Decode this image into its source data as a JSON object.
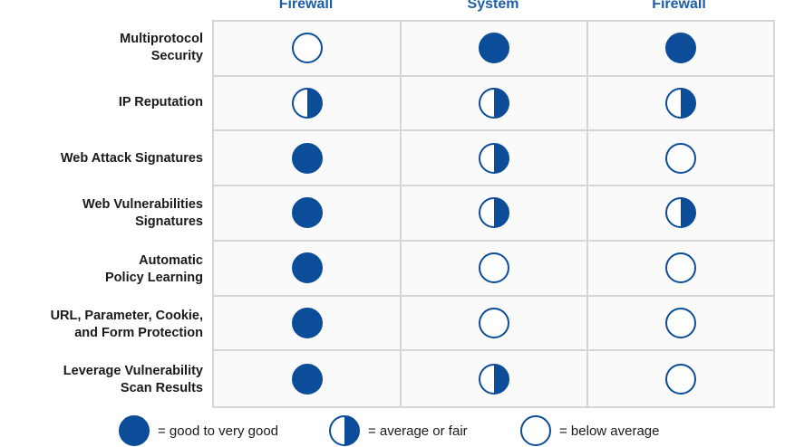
{
  "colors": {
    "accent": "#0b4d99",
    "header": "#1c5ea8",
    "grid_line": "#d6d6d6",
    "cell_bg": "#fafafa"
  },
  "chart_data": {
    "type": "table",
    "columns": [
      "Firewall",
      "System",
      "Firewall"
    ],
    "rows": [
      {
        "label": [
          "Multiprotocol",
          "Security"
        ],
        "ratings": [
          "empty",
          "full",
          "full"
        ]
      },
      {
        "label": [
          "IP Reputation"
        ],
        "ratings": [
          "half",
          "half",
          "half"
        ]
      },
      {
        "label": [
          "Web Attack Signatures"
        ],
        "ratings": [
          "full",
          "half",
          "empty"
        ]
      },
      {
        "label": [
          "Web Vulnerabilities",
          "Signatures"
        ],
        "ratings": [
          "full",
          "half",
          "half"
        ]
      },
      {
        "label": [
          "Automatic",
          "Policy Learning"
        ],
        "ratings": [
          "full",
          "empty",
          "empty"
        ]
      },
      {
        "label": [
          "URL, Parameter, Cookie,",
          "and Form Protection"
        ],
        "ratings": [
          "full",
          "empty",
          "empty"
        ]
      },
      {
        "label": [
          "Leverage Vulnerability",
          "Scan Results"
        ],
        "ratings": [
          "full",
          "half",
          "empty"
        ]
      }
    ],
    "legend": [
      {
        "symbol": "full",
        "label": "= good to very good"
      },
      {
        "symbol": "half",
        "label": "= average or fair"
      },
      {
        "symbol": "empty",
        "label": "= below average"
      }
    ]
  }
}
